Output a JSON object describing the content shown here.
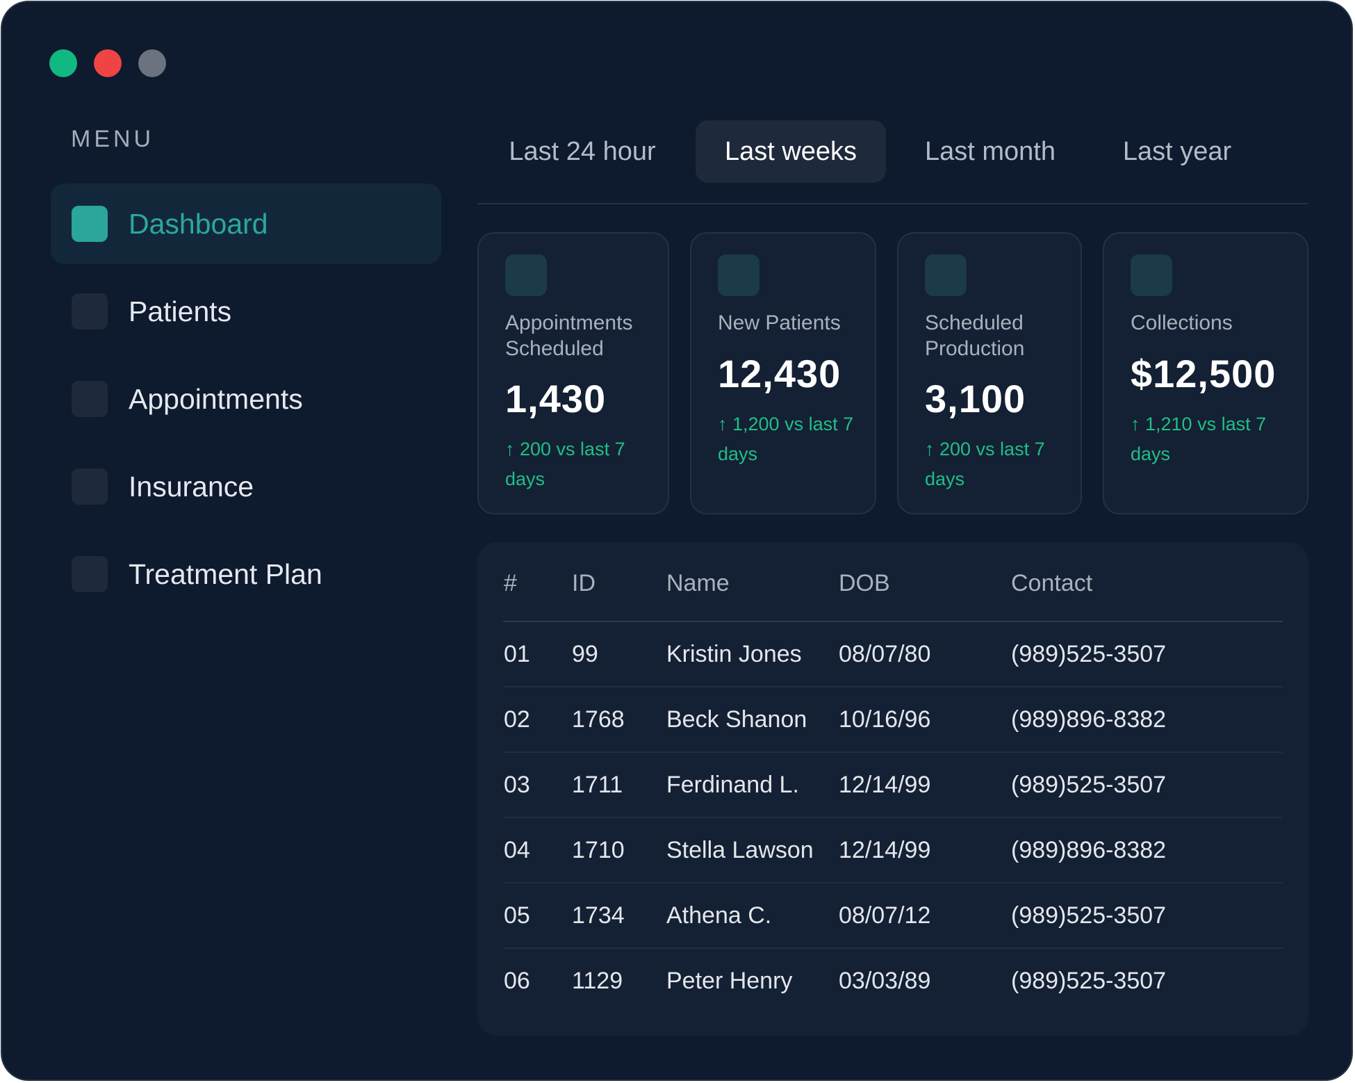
{
  "colors": {
    "window_bg": "#0e1a2d",
    "panel_bg": "#142033",
    "accent": "#2aa69b",
    "positive": "#1fbf87",
    "traffic_green": "#10b981",
    "traffic_red": "#ef4444",
    "traffic_gray": "#6b7280"
  },
  "sidebar": {
    "menu_title": "MENU",
    "items": [
      {
        "label": "Dashboard",
        "active": true
      },
      {
        "label": "Patients",
        "active": false
      },
      {
        "label": "Appointments",
        "active": false
      },
      {
        "label": "Insurance",
        "active": false
      },
      {
        "label": "Treatment Plan",
        "active": false
      }
    ]
  },
  "tabs": [
    {
      "label": "Last 24 hour",
      "active": false
    },
    {
      "label": "Last weeks",
      "active": true
    },
    {
      "label": "Last month",
      "active": false
    },
    {
      "label": "Last year",
      "active": false
    }
  ],
  "stats": [
    {
      "label": "Appointments Scheduled",
      "value": "1,430",
      "delta": "↑ 200 vs last 7 days"
    },
    {
      "label": "New Patients",
      "value": "12,430",
      "delta": "↑ 1,200 vs last 7 days"
    },
    {
      "label": "Scheduled Production",
      "value": "3,100",
      "delta": "↑ 200 vs last 7 days"
    },
    {
      "label": "Collections",
      "value": "$12,500",
      "delta": "↑ 1,210 vs last 7 days"
    }
  ],
  "table": {
    "headers": [
      "#",
      "ID",
      "Name",
      "DOB",
      "Contact"
    ],
    "rows": [
      [
        "01",
        "99",
        "Kristin Jones",
        "08/07/80",
        "(989)525-3507"
      ],
      [
        "02",
        "1768",
        "Beck Shanon",
        "10/16/96",
        "(989)896-8382"
      ],
      [
        "03",
        "1711",
        "Ferdinand L.",
        "12/14/99",
        "(989)525-3507"
      ],
      [
        "04",
        "1710",
        "Stella Lawson",
        "12/14/99",
        "(989)896-8382"
      ],
      [
        "05",
        "1734",
        "Athena C.",
        "08/07/12",
        "(989)525-3507"
      ],
      [
        "06",
        "1129",
        "Peter Henry",
        "03/03/89",
        "(989)525-3507"
      ]
    ]
  }
}
